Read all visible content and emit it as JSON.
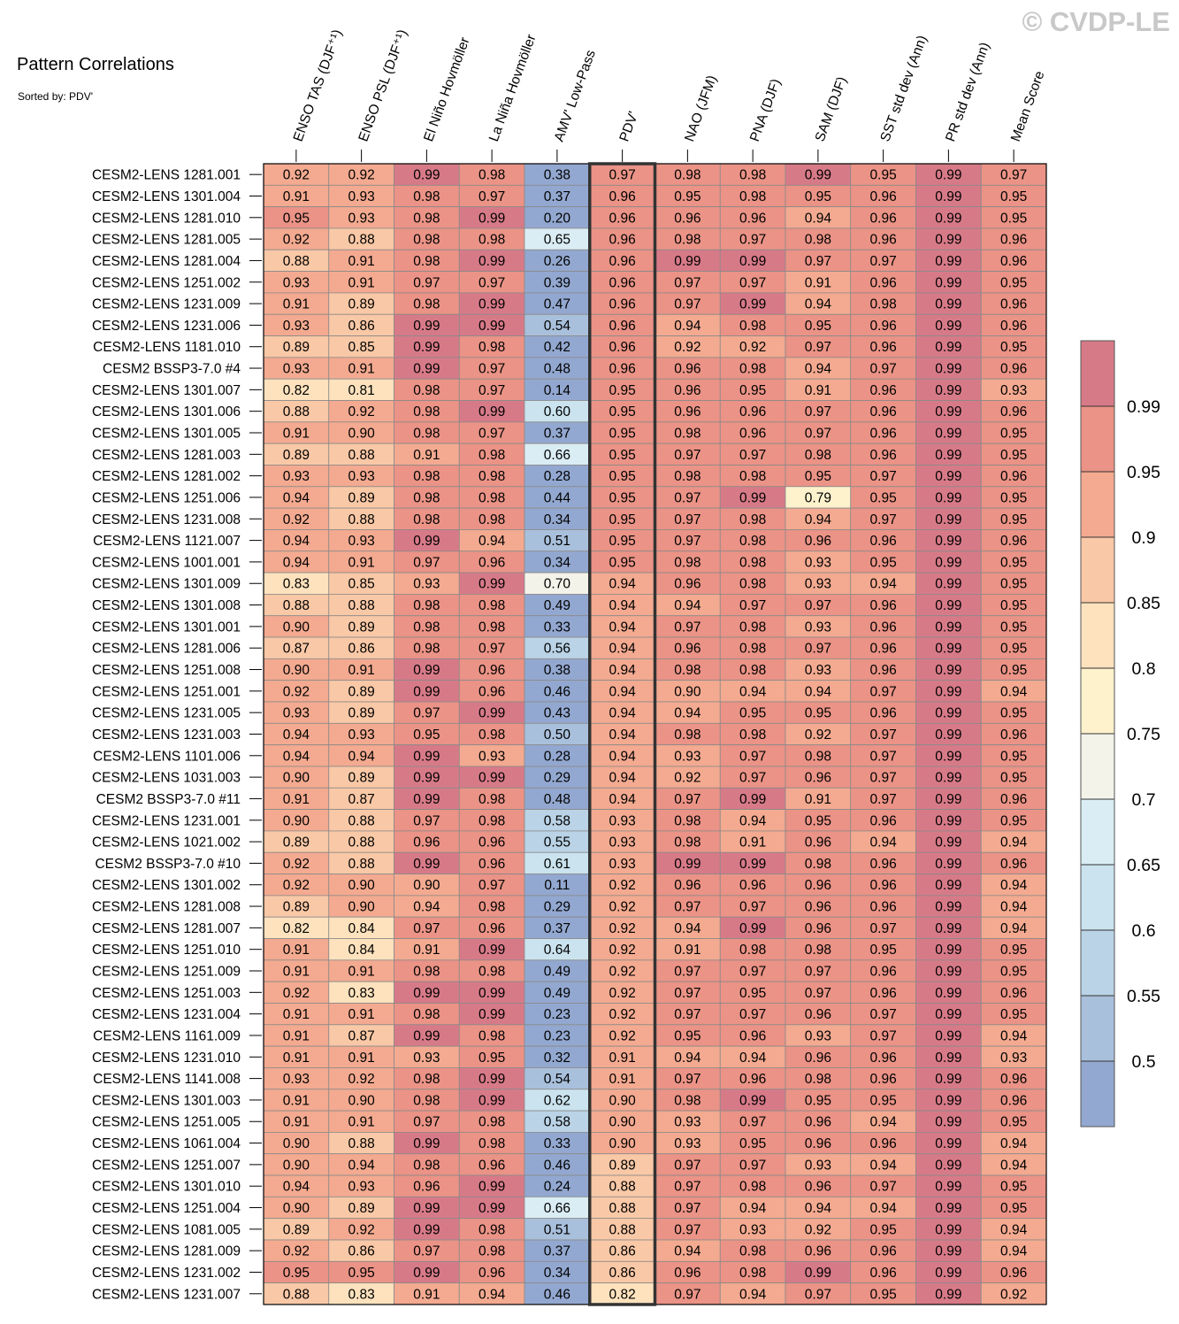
{
  "title": "Pattern Correlations",
  "subtitle": "Sorted by: PDV'",
  "watermark": "© CVDP-LE",
  "chart_data": {
    "type": "heatmap",
    "title": "Pattern Correlations",
    "sorted_by": "PDV'",
    "highlight_column": 5,
    "columns": [
      "ENSO TAS (DJF⁺¹)",
      "ENSO PSL (DJF⁺¹)",
      "El Niño Hovmöller",
      "La Niña Hovmöller",
      "AMV' Low-Pass",
      "PDV'",
      "NAO (JFM)",
      "PNA (DJF)",
      "SAM (DJF)",
      "SST std dev (Ann)",
      "PR std dev (Ann)",
      "Mean Score"
    ],
    "rows": [
      "CESM2-LENS 1281.001",
      "CESM2-LENS 1301.004",
      "CESM2-LENS 1281.010",
      "CESM2-LENS 1281.005",
      "CESM2-LENS 1281.004",
      "CESM2-LENS 1251.002",
      "CESM2-LENS 1231.009",
      "CESM2-LENS 1231.006",
      "CESM2-LENS 1181.010",
      "CESM2 BSSP3-7.0 #4",
      "CESM2-LENS 1301.007",
      "CESM2-LENS 1301.006",
      "CESM2-LENS 1301.005",
      "CESM2-LENS 1281.003",
      "CESM2-LENS 1281.002",
      "CESM2-LENS 1251.006",
      "CESM2-LENS 1231.008",
      "CESM2-LENS 1121.007",
      "CESM2-LENS 1001.001",
      "CESM2-LENS 1301.009",
      "CESM2-LENS 1301.008",
      "CESM2-LENS 1301.001",
      "CESM2-LENS 1281.006",
      "CESM2-LENS 1251.008",
      "CESM2-LENS 1251.001",
      "CESM2-LENS 1231.005",
      "CESM2-LENS 1231.003",
      "CESM2-LENS 1101.006",
      "CESM2-LENS 1031.003",
      "CESM2 BSSP3-7.0 #11",
      "CESM2-LENS 1231.001",
      "CESM2-LENS 1021.002",
      "CESM2 BSSP3-7.0 #10",
      "CESM2-LENS 1301.002",
      "CESM2-LENS 1281.008",
      "CESM2-LENS 1281.007",
      "CESM2-LENS 1251.010",
      "CESM2-LENS 1251.009",
      "CESM2-LENS 1251.003",
      "CESM2-LENS 1231.004",
      "CESM2-LENS 1161.009",
      "CESM2-LENS 1231.010",
      "CESM2-LENS 1141.008",
      "CESM2-LENS 1301.003",
      "CESM2-LENS 1251.005",
      "CESM2-LENS 1061.004",
      "CESM2-LENS 1251.007",
      "CESM2-LENS 1301.010",
      "CESM2-LENS 1251.004",
      "CESM2-LENS 1081.005",
      "CESM2-LENS 1281.009",
      "CESM2-LENS 1231.002",
      "CESM2-LENS 1231.007"
    ],
    "values": [
      [
        "0.92",
        "0.92",
        "0.99",
        "0.98",
        "0.38",
        "0.97",
        "0.98",
        "0.98",
        "0.99",
        "0.95",
        "0.99",
        "0.97"
      ],
      [
        "0.91",
        "0.93",
        "0.98",
        "0.97",
        "0.37",
        "0.96",
        "0.95",
        "0.98",
        "0.95",
        "0.96",
        "0.99",
        "0.95"
      ],
      [
        "0.95",
        "0.93",
        "0.98",
        "0.99",
        "0.20",
        "0.96",
        "0.96",
        "0.96",
        "0.94",
        "0.96",
        "0.99",
        "0.95"
      ],
      [
        "0.92",
        "0.88",
        "0.98",
        "0.98",
        "0.65",
        "0.96",
        "0.98",
        "0.97",
        "0.98",
        "0.96",
        "0.99",
        "0.96"
      ],
      [
        "0.88",
        "0.91",
        "0.98",
        "0.99",
        "0.26",
        "0.96",
        "0.99",
        "0.99",
        "0.97",
        "0.97",
        "0.99",
        "0.96"
      ],
      [
        "0.93",
        "0.91",
        "0.97",
        "0.97",
        "0.39",
        "0.96",
        "0.97",
        "0.97",
        "0.91",
        "0.96",
        "0.99",
        "0.95"
      ],
      [
        "0.91",
        "0.89",
        "0.98",
        "0.99",
        "0.47",
        "0.96",
        "0.97",
        "0.99",
        "0.94",
        "0.98",
        "0.99",
        "0.96"
      ],
      [
        "0.93",
        "0.86",
        "0.99",
        "0.99",
        "0.54",
        "0.96",
        "0.94",
        "0.98",
        "0.95",
        "0.96",
        "0.99",
        "0.96"
      ],
      [
        "0.89",
        "0.85",
        "0.99",
        "0.98",
        "0.42",
        "0.96",
        "0.92",
        "0.92",
        "0.97",
        "0.96",
        "0.99",
        "0.95"
      ],
      [
        "0.93",
        "0.91",
        "0.99",
        "0.97",
        "0.48",
        "0.96",
        "0.96",
        "0.98",
        "0.94",
        "0.97",
        "0.99",
        "0.96"
      ],
      [
        "0.82",
        "0.81",
        "0.98",
        "0.97",
        "0.14",
        "0.95",
        "0.96",
        "0.95",
        "0.91",
        "0.96",
        "0.99",
        "0.93"
      ],
      [
        "0.88",
        "0.92",
        "0.98",
        "0.99",
        "0.60",
        "0.95",
        "0.96",
        "0.96",
        "0.97",
        "0.96",
        "0.99",
        "0.96"
      ],
      [
        "0.91",
        "0.90",
        "0.98",
        "0.97",
        "0.37",
        "0.95",
        "0.98",
        "0.96",
        "0.97",
        "0.96",
        "0.99",
        "0.95"
      ],
      [
        "0.89",
        "0.88",
        "0.91",
        "0.98",
        "0.66",
        "0.95",
        "0.97",
        "0.97",
        "0.98",
        "0.96",
        "0.99",
        "0.95"
      ],
      [
        "0.93",
        "0.93",
        "0.98",
        "0.98",
        "0.28",
        "0.95",
        "0.98",
        "0.98",
        "0.95",
        "0.97",
        "0.99",
        "0.96"
      ],
      [
        "0.94",
        "0.89",
        "0.98",
        "0.98",
        "0.44",
        "0.95",
        "0.97",
        "0.99",
        "0.79",
        "0.95",
        "0.99",
        "0.95"
      ],
      [
        "0.92",
        "0.88",
        "0.98",
        "0.98",
        "0.34",
        "0.95",
        "0.97",
        "0.98",
        "0.94",
        "0.97",
        "0.99",
        "0.95"
      ],
      [
        "0.94",
        "0.93",
        "0.99",
        "0.94",
        "0.51",
        "0.95",
        "0.97",
        "0.98",
        "0.96",
        "0.96",
        "0.99",
        "0.96"
      ],
      [
        "0.94",
        "0.91",
        "0.97",
        "0.96",
        "0.34",
        "0.95",
        "0.98",
        "0.98",
        "0.93",
        "0.95",
        "0.99",
        "0.95"
      ],
      [
        "0.83",
        "0.85",
        "0.93",
        "0.99",
        "0.70",
        "0.94",
        "0.96",
        "0.98",
        "0.93",
        "0.94",
        "0.99",
        "0.95"
      ],
      [
        "0.88",
        "0.88",
        "0.98",
        "0.98",
        "0.49",
        "0.94",
        "0.94",
        "0.97",
        "0.97",
        "0.96",
        "0.99",
        "0.95"
      ],
      [
        "0.90",
        "0.89",
        "0.98",
        "0.98",
        "0.33",
        "0.94",
        "0.97",
        "0.98",
        "0.93",
        "0.96",
        "0.99",
        "0.95"
      ],
      [
        "0.87",
        "0.86",
        "0.98",
        "0.97",
        "0.56",
        "0.94",
        "0.96",
        "0.98",
        "0.97",
        "0.96",
        "0.99",
        "0.95"
      ],
      [
        "0.90",
        "0.91",
        "0.99",
        "0.96",
        "0.38",
        "0.94",
        "0.98",
        "0.98",
        "0.93",
        "0.96",
        "0.99",
        "0.95"
      ],
      [
        "0.92",
        "0.89",
        "0.99",
        "0.96",
        "0.46",
        "0.94",
        "0.90",
        "0.94",
        "0.94",
        "0.97",
        "0.99",
        "0.94"
      ],
      [
        "0.93",
        "0.89",
        "0.97",
        "0.99",
        "0.43",
        "0.94",
        "0.94",
        "0.95",
        "0.95",
        "0.96",
        "0.99",
        "0.95"
      ],
      [
        "0.94",
        "0.93",
        "0.95",
        "0.98",
        "0.50",
        "0.94",
        "0.98",
        "0.98",
        "0.92",
        "0.97",
        "0.99",
        "0.96"
      ],
      [
        "0.94",
        "0.94",
        "0.99",
        "0.93",
        "0.28",
        "0.94",
        "0.93",
        "0.97",
        "0.98",
        "0.97",
        "0.99",
        "0.95"
      ],
      [
        "0.90",
        "0.89",
        "0.99",
        "0.99",
        "0.29",
        "0.94",
        "0.92",
        "0.97",
        "0.96",
        "0.97",
        "0.99",
        "0.95"
      ],
      [
        "0.91",
        "0.87",
        "0.99",
        "0.98",
        "0.48",
        "0.94",
        "0.97",
        "0.99",
        "0.91",
        "0.97",
        "0.99",
        "0.96"
      ],
      [
        "0.90",
        "0.88",
        "0.97",
        "0.98",
        "0.58",
        "0.93",
        "0.98",
        "0.94",
        "0.95",
        "0.96",
        "0.99",
        "0.95"
      ],
      [
        "0.89",
        "0.88",
        "0.96",
        "0.96",
        "0.55",
        "0.93",
        "0.98",
        "0.91",
        "0.96",
        "0.94",
        "0.99",
        "0.94"
      ],
      [
        "0.92",
        "0.88",
        "0.99",
        "0.96",
        "0.61",
        "0.93",
        "0.99",
        "0.99",
        "0.98",
        "0.96",
        "0.99",
        "0.96"
      ],
      [
        "0.92",
        "0.90",
        "0.90",
        "0.97",
        "0.11",
        "0.92",
        "0.96",
        "0.96",
        "0.96",
        "0.96",
        "0.99",
        "0.94"
      ],
      [
        "0.89",
        "0.90",
        "0.94",
        "0.98",
        "0.29",
        "0.92",
        "0.97",
        "0.97",
        "0.96",
        "0.96",
        "0.99",
        "0.94"
      ],
      [
        "0.82",
        "0.84",
        "0.97",
        "0.96",
        "0.37",
        "0.92",
        "0.94",
        "0.99",
        "0.96",
        "0.97",
        "0.99",
        "0.94"
      ],
      [
        "0.91",
        "0.84",
        "0.91",
        "0.99",
        "0.64",
        "0.92",
        "0.91",
        "0.98",
        "0.98",
        "0.95",
        "0.99",
        "0.95"
      ],
      [
        "0.91",
        "0.91",
        "0.98",
        "0.98",
        "0.49",
        "0.92",
        "0.97",
        "0.97",
        "0.97",
        "0.96",
        "0.99",
        "0.95"
      ],
      [
        "0.92",
        "0.83",
        "0.99",
        "0.99",
        "0.49",
        "0.92",
        "0.97",
        "0.95",
        "0.97",
        "0.96",
        "0.99",
        "0.96"
      ],
      [
        "0.91",
        "0.91",
        "0.98",
        "0.99",
        "0.23",
        "0.92",
        "0.97",
        "0.97",
        "0.96",
        "0.97",
        "0.99",
        "0.95"
      ],
      [
        "0.91",
        "0.87",
        "0.99",
        "0.98",
        "0.23",
        "0.92",
        "0.95",
        "0.96",
        "0.93",
        "0.97",
        "0.99",
        "0.94"
      ],
      [
        "0.91",
        "0.91",
        "0.93",
        "0.95",
        "0.32",
        "0.91",
        "0.94",
        "0.94",
        "0.96",
        "0.96",
        "0.99",
        "0.93"
      ],
      [
        "0.93",
        "0.92",
        "0.98",
        "0.99",
        "0.54",
        "0.91",
        "0.97",
        "0.96",
        "0.98",
        "0.96",
        "0.99",
        "0.96"
      ],
      [
        "0.91",
        "0.90",
        "0.98",
        "0.99",
        "0.62",
        "0.90",
        "0.98",
        "0.99",
        "0.95",
        "0.95",
        "0.99",
        "0.96"
      ],
      [
        "0.91",
        "0.91",
        "0.97",
        "0.98",
        "0.58",
        "0.90",
        "0.93",
        "0.97",
        "0.96",
        "0.94",
        "0.99",
        "0.95"
      ],
      [
        "0.90",
        "0.88",
        "0.99",
        "0.98",
        "0.33",
        "0.90",
        "0.93",
        "0.95",
        "0.96",
        "0.96",
        "0.99",
        "0.94"
      ],
      [
        "0.90",
        "0.94",
        "0.98",
        "0.96",
        "0.46",
        "0.89",
        "0.97",
        "0.97",
        "0.93",
        "0.94",
        "0.99",
        "0.94"
      ],
      [
        "0.94",
        "0.93",
        "0.96",
        "0.99",
        "0.24",
        "0.88",
        "0.97",
        "0.98",
        "0.96",
        "0.97",
        "0.99",
        "0.95"
      ],
      [
        "0.90",
        "0.89",
        "0.99",
        "0.99",
        "0.66",
        "0.88",
        "0.97",
        "0.94",
        "0.94",
        "0.94",
        "0.99",
        "0.95"
      ],
      [
        "0.89",
        "0.92",
        "0.99",
        "0.98",
        "0.51",
        "0.88",
        "0.97",
        "0.93",
        "0.92",
        "0.95",
        "0.99",
        "0.94"
      ],
      [
        "0.92",
        "0.86",
        "0.97",
        "0.98",
        "0.37",
        "0.86",
        "0.94",
        "0.98",
        "0.96",
        "0.96",
        "0.99",
        "0.94"
      ],
      [
        "0.95",
        "0.95",
        "0.99",
        "0.96",
        "0.34",
        "0.86",
        "0.96",
        "0.98",
        "0.99",
        "0.96",
        "0.99",
        "0.96"
      ],
      [
        "0.88",
        "0.83",
        "0.91",
        "0.94",
        "0.46",
        "0.82",
        "0.97",
        "0.94",
        "0.97",
        "0.95",
        "0.99",
        "0.92"
      ]
    ],
    "colorbar": {
      "levels": [
        0.5,
        0.55,
        0.6,
        0.65,
        0.7,
        0.75,
        0.8,
        0.85,
        0.9,
        0.95,
        0.99
      ],
      "tick_labels": [
        "0.5",
        "0.55",
        "0.6",
        "0.65",
        "0.7",
        "0.75",
        "0.8",
        "0.85",
        "0.9",
        "0.95",
        "0.99"
      ],
      "colors": [
        "#93a8d0",
        "#a9c0dc",
        "#bad3e6",
        "#cae3ee",
        "#daedf4",
        "#f3f3ea",
        "#fdf2cc",
        "#fde2bd",
        "#f9c8a6",
        "#f3aa90",
        "#ea9386",
        "#d77a88"
      ]
    }
  }
}
